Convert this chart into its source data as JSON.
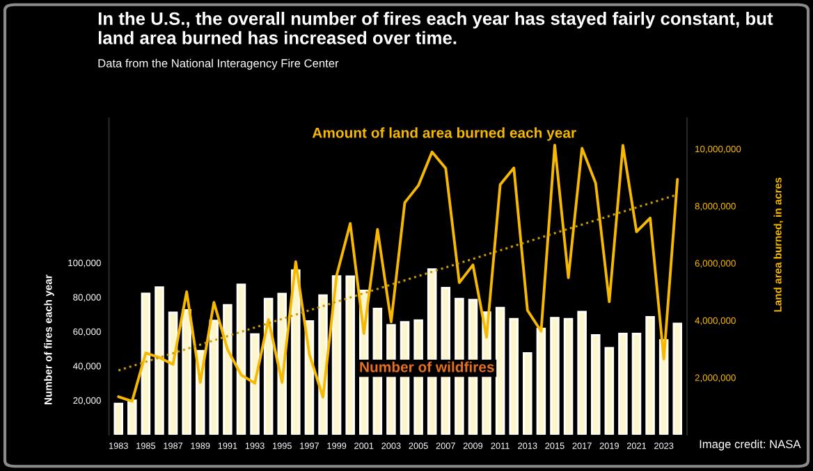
{
  "chart_data": {
    "type": "bar",
    "title": "In the U.S., the overall number of fires each year has stayed fairly constant, but land area burned has increased over time.",
    "subtitle": "Data from the National Interagency Fire Center",
    "ylabel": "Number of fires each year",
    "y2label": "Land area burned, in acres",
    "annotations": [
      "Image credit: NASA"
    ],
    "x": [
      1983,
      1984,
      1985,
      1986,
      1987,
      1988,
      1989,
      1990,
      1991,
      1992,
      1993,
      1994,
      1995,
      1996,
      1997,
      1998,
      1999,
      2000,
      2001,
      2002,
      2003,
      2004,
      2005,
      2006,
      2007,
      2008,
      2009,
      2010,
      2011,
      2012,
      2013,
      2014,
      2015,
      2016,
      2017,
      2018,
      2019,
      2020,
      2021,
      2022,
      2023,
      2024
    ],
    "series": [
      {
        "name": "Number of wildfires",
        "color": "#fdf5cc",
        "values": [
          18000,
          20000,
          82000,
          85700,
          71000,
          72500,
          48700,
          66300,
          75400,
          87300,
          58400,
          79000,
          81900,
          95600,
          66000,
          81000,
          92100,
          92000,
          83800,
          73300,
          63800,
          65500,
          66500,
          96200,
          85400,
          79000,
          78400,
          71100,
          73800,
          67300,
          47400,
          61700,
          67900,
          67300,
          71400,
          57900,
          50400,
          58700,
          58700,
          68400,
          55000,
          64600
        ]
      },
      {
        "name": "Amount of land area burned each year",
        "type": "line",
        "axis": "y2",
        "color": "#f7b900",
        "values": [
          1330000,
          1170000,
          2860000,
          2700000,
          2460000,
          5000000,
          1830000,
          4630000,
          2980000,
          2090000,
          1800000,
          4030000,
          1830000,
          6050000,
          2820000,
          1310000,
          5570000,
          7390000,
          3540000,
          7180000,
          3950000,
          8120000,
          8720000,
          9890000,
          9320000,
          5320000,
          5940000,
          3410000,
          8750000,
          9330000,
          4350000,
          3620000,
          10130000,
          5490000,
          10020000,
          8800000,
          4650000,
          10120000,
          7100000,
          7580000,
          2650000,
          8930000
        ]
      },
      {
        "type": "line",
        "axis": "y2",
        "color": "#c99a00",
        "line_style": "dotted",
        "x": [
          1983,
          2024
        ],
        "values": [
          2250000,
          8400000
        ]
      }
    ],
    "xlim": [
      1982.3,
      2024.7
    ],
    "xticks": [
      1983,
      1985,
      1987,
      1989,
      1991,
      1993,
      1995,
      1997,
      1999,
      2001,
      2003,
      2005,
      2007,
      2009,
      2011,
      2013,
      2015,
      2017,
      2019,
      2021,
      2023
    ],
    "ylim": [
      0,
      184000
    ],
    "yticks": [
      {
        "value": 20000,
        "label": "20,000"
      },
      {
        "value": 40000,
        "label": "40,000"
      },
      {
        "value": 60000,
        "label": "60,000"
      },
      {
        "value": 80000,
        "label": "80,000"
      },
      {
        "value": 100000,
        "label": "100,000"
      }
    ],
    "y2lim": [
      0,
      11070000
    ],
    "y2ticks": [
      {
        "value": 2000000,
        "label": "2,000,000"
      },
      {
        "value": 4000000,
        "label": "4,000,000"
      },
      {
        "value": 6000000,
        "label": "6,000,000"
      },
      {
        "value": 8000000,
        "label": "8,000,000"
      },
      {
        "value": 10000000,
        "label": "10,000,000"
      }
    ],
    "legend": false,
    "grid": false,
    "marker": "none"
  }
}
